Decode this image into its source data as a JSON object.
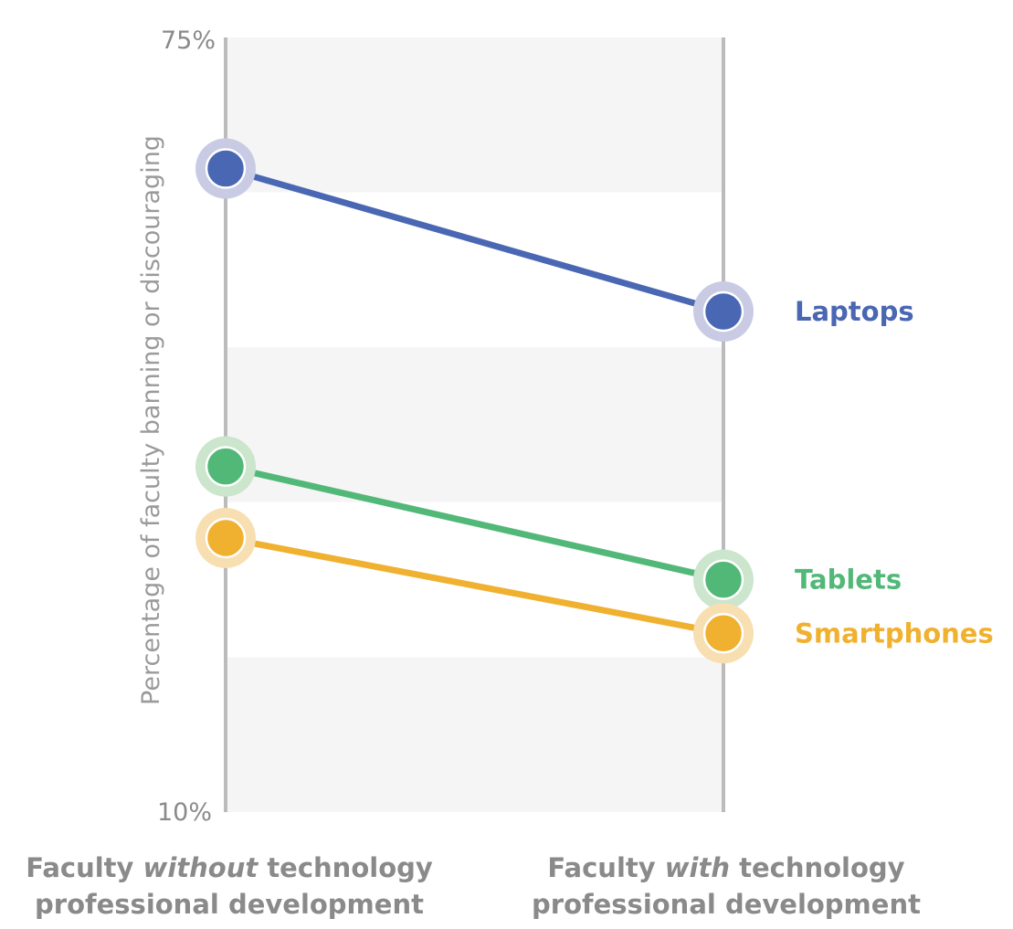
{
  "chart_data": {
    "type": "line",
    "title": "",
    "ylabel": "Percentage of faculty banning or discouraging",
    "ylim": [
      10,
      75
    ],
    "y_tick_labels": [
      "75%",
      "10%"
    ],
    "categories": [
      {
        "before": "Faculty ",
        "emph": "without",
        "after": " technology",
        "line2": "professional development"
      },
      {
        "before": "Faculty ",
        "emph": "with",
        "after": " technology",
        "line2": "professional development"
      }
    ],
    "series": [
      {
        "name": "Laptops",
        "color": "#4a67b3",
        "halo": "#c9cbe4",
        "values": [
          64,
          52
        ]
      },
      {
        "name": "Tablets",
        "color": "#52b877",
        "halo": "#cbe6cd",
        "values": [
          39,
          29.5
        ]
      },
      {
        "name": "Smartphones",
        "color": "#f0b030",
        "halo": "#f8dfb2",
        "values": [
          33,
          25
        ]
      }
    ],
    "grid": "alternating bands",
    "band_color": "#f5f5f5",
    "axis_color": "#bbbbbb"
  }
}
